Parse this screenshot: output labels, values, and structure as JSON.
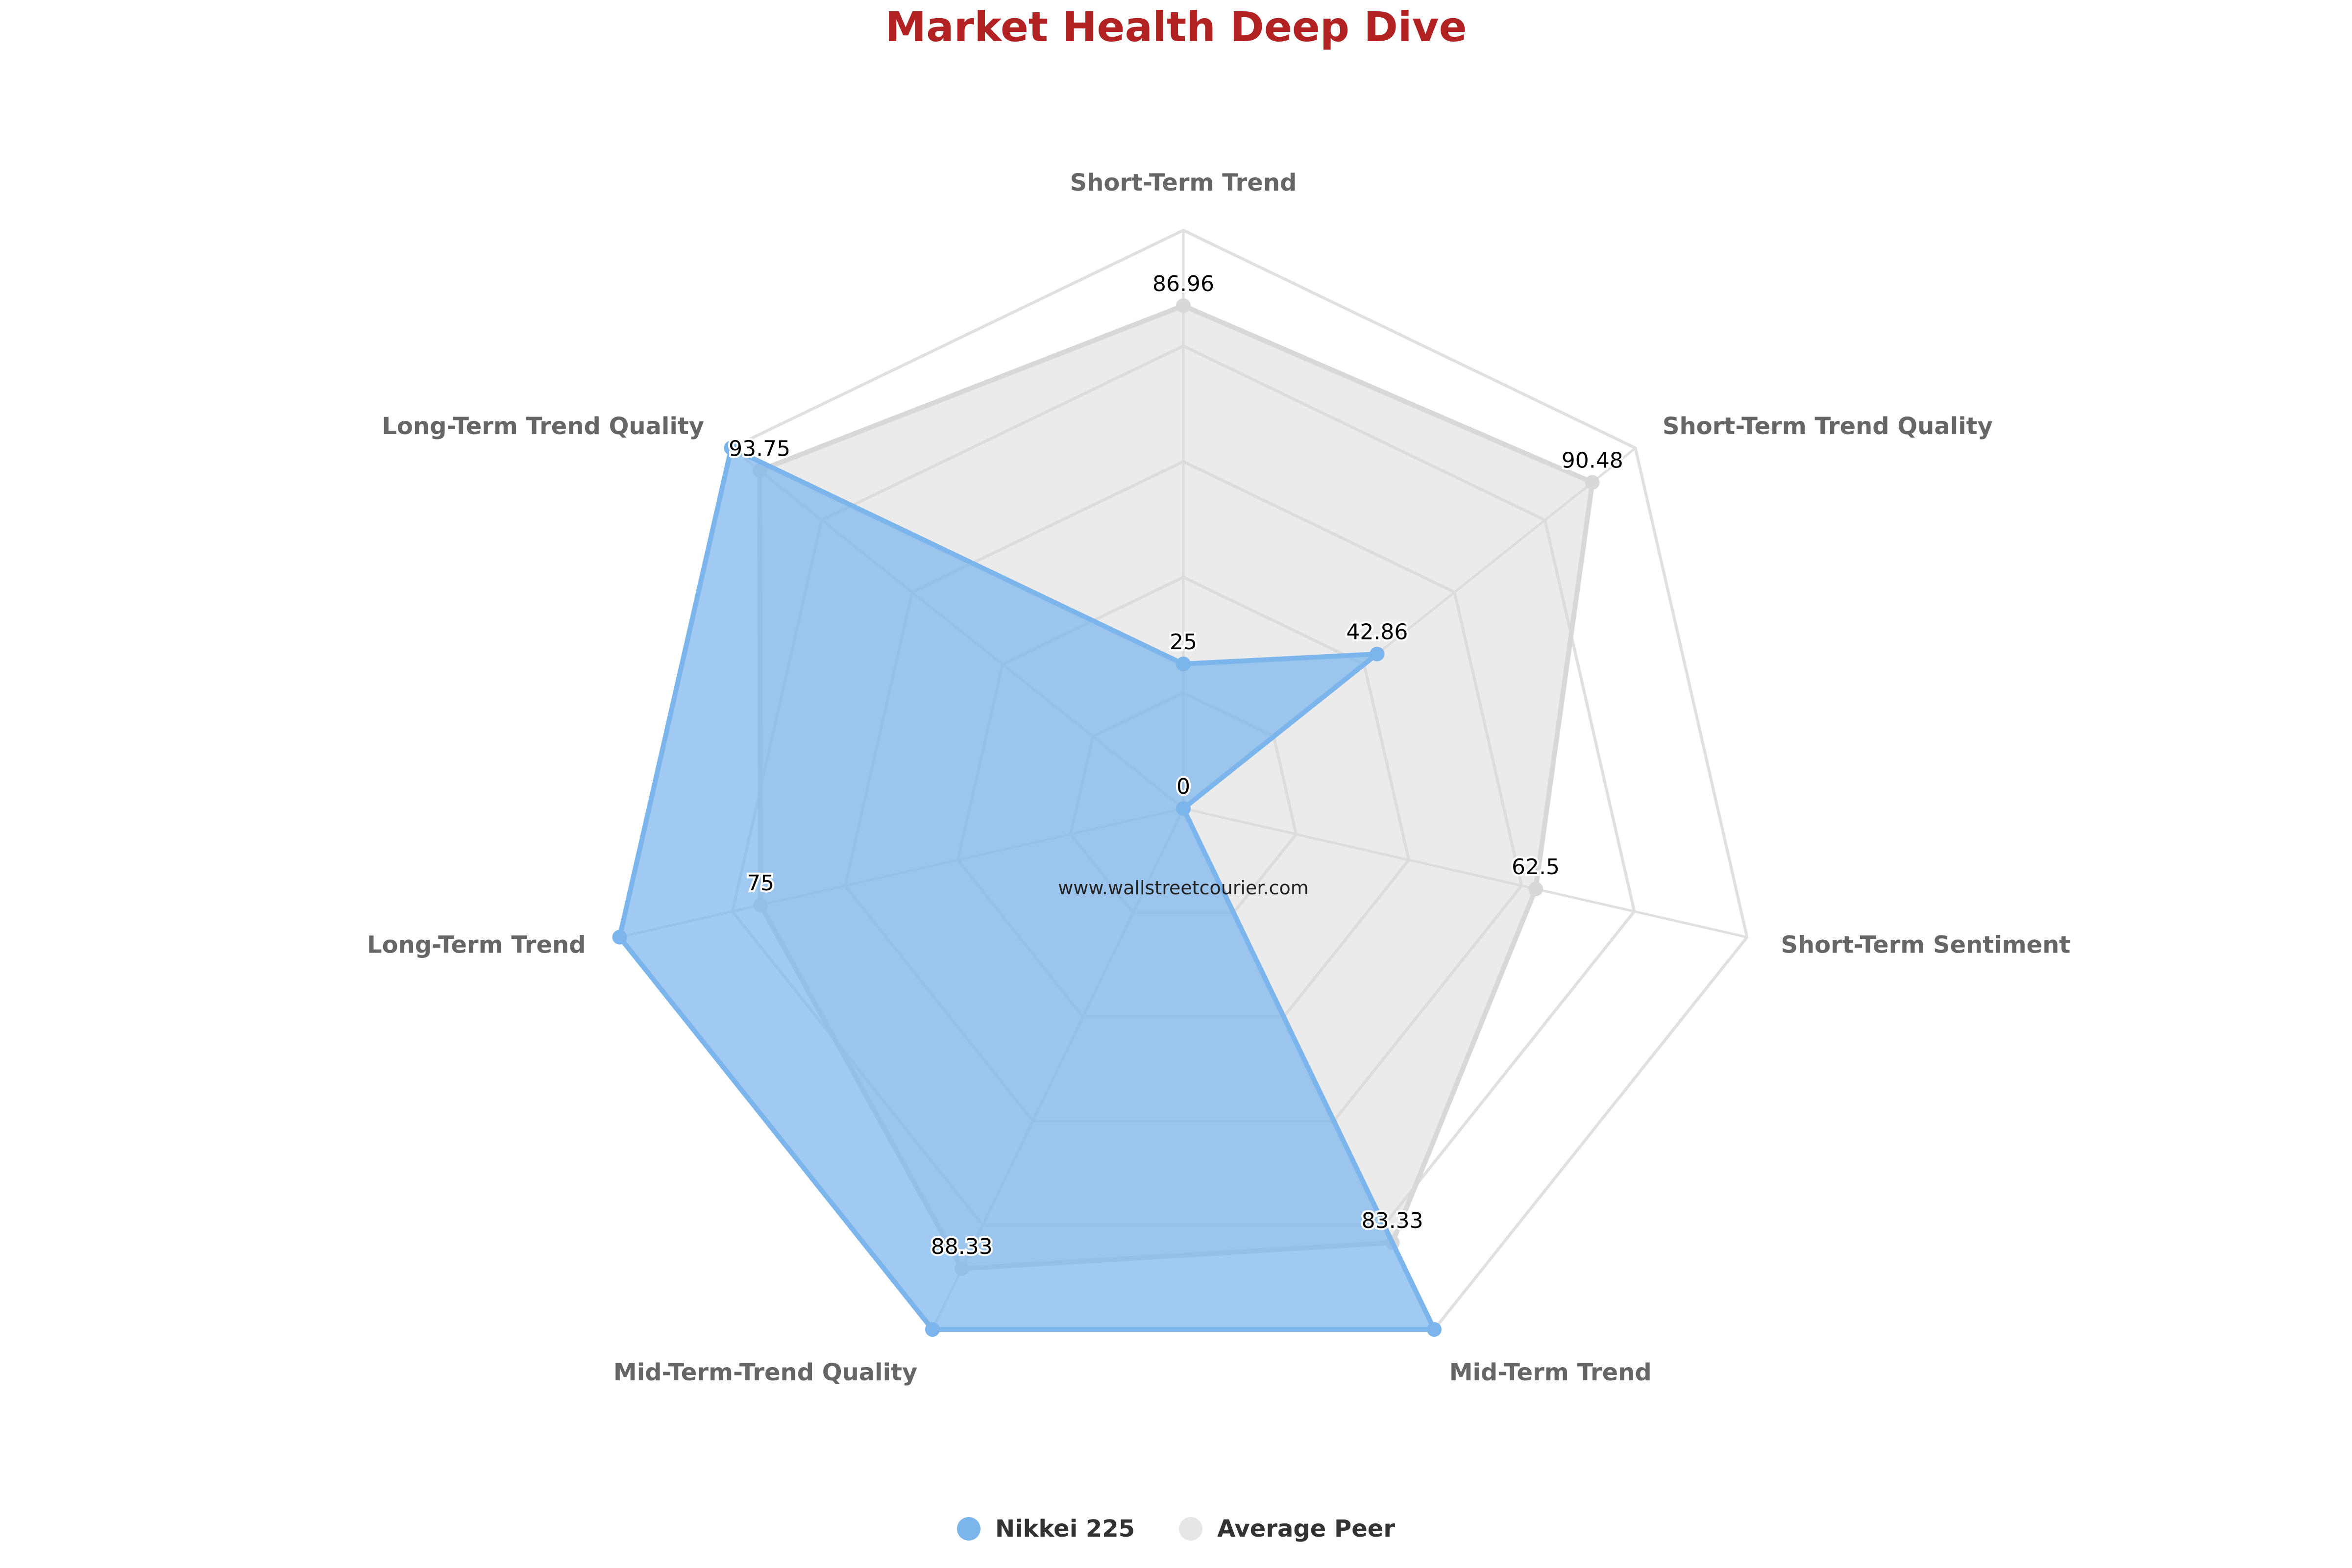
{
  "chart_data": {
    "type": "radar",
    "title": "Market Health Deep Dive",
    "categories": [
      "Short-Term Trend",
      "Short-Term Trend Quality",
      "Short-Term Sentiment",
      "Mid-Term Trend",
      "Mid-Term-Trend Quality",
      "Long-Term Trend",
      "Long-Term Trend Quality"
    ],
    "ylim": [
      0,
      100
    ],
    "grid_levels": [
      20,
      40,
      60,
      80,
      100
    ],
    "grid": true,
    "legend_position": "bottom-center",
    "series": [
      {
        "name": "Nikkei 225",
        "color": "#7cb5ec",
        "values": [
          25,
          42.86,
          0,
          100,
          100,
          100,
          100
        ]
      },
      {
        "name": "Average Peer",
        "color": "#e6e6e6",
        "values": [
          86.96,
          90.48,
          62.5,
          83.33,
          88.33,
          75,
          93.75
        ]
      }
    ],
    "data_labels": [
      "86.96",
      "42.86",
      "90.48",
      "62.5",
      "0",
      "83.33",
      "88.33",
      "75",
      "25",
      "93.75"
    ],
    "watermark": "www.wallstreetcourier.com"
  },
  "colors": {
    "title": "#b22222",
    "axis_label": "#666666",
    "grid": "#e0e0e0"
  }
}
